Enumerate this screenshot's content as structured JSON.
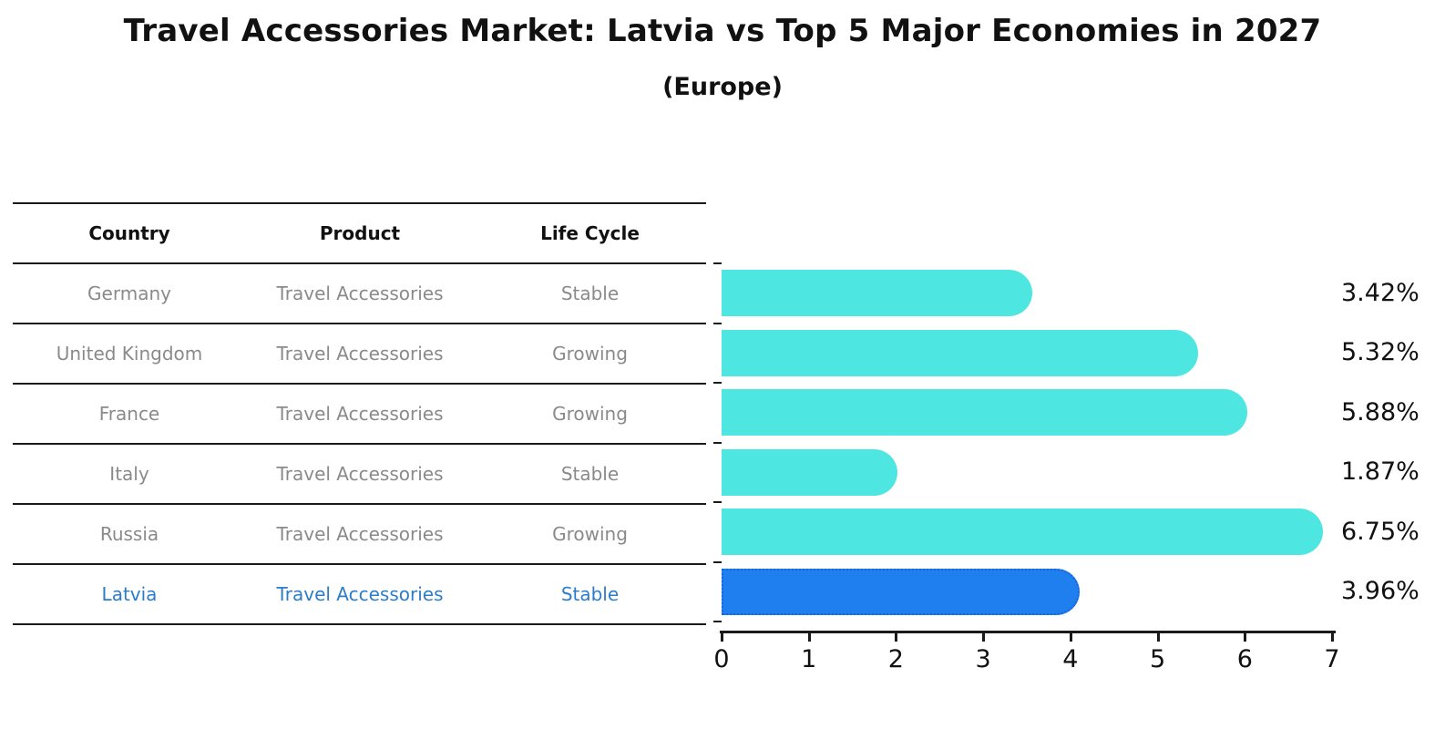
{
  "header": {
    "title": "Travel Accessories Market: Latvia vs Top 5 Major Economies in 2027",
    "subtitle": "(Europe)"
  },
  "table": {
    "headers": [
      "Country",
      "Product",
      "Life Cycle"
    ],
    "rows": [
      {
        "country": "Germany",
        "product": "Travel Accessories",
        "life_cycle": "Stable"
      },
      {
        "country": "United Kingdom",
        "product": "Travel Accessories",
        "life_cycle": "Growing"
      },
      {
        "country": "France",
        "product": "Travel Accessories",
        "life_cycle": "Growing"
      },
      {
        "country": "Italy",
        "product": "Travel Accessories",
        "life_cycle": "Stable"
      },
      {
        "country": "Russia",
        "product": "Travel Accessories",
        "life_cycle": "Growing"
      },
      {
        "country": "Latvia",
        "product": "Travel Accessories",
        "life_cycle": "Stable"
      }
    ],
    "highlight_row_index": 5,
    "highlight_text_color": "#2b7dc9",
    "body_text_color": "#8a8a8a"
  },
  "chart_data": {
    "type": "bar",
    "orientation": "horizontal",
    "title": "Travel Accessories Market: Latvia vs Top 5 Major Economies in 2027",
    "subtitle": "(Europe)",
    "categories": [
      "Germany",
      "United Kingdom",
      "France",
      "Italy",
      "Russia",
      "Latvia"
    ],
    "values": [
      3.42,
      5.32,
      5.88,
      1.87,
      6.75,
      3.96
    ],
    "labels": [
      "3.42%",
      "5.32%",
      "5.88%",
      "1.87%",
      "6.75%",
      "3.96%"
    ],
    "xlabel": "",
    "ylabel": "",
    "xlim": [
      0,
      7
    ],
    "xticks": [
      0,
      1,
      2,
      3,
      4,
      5,
      6,
      7
    ],
    "grid": false,
    "legend": "none",
    "bar_color": "#4de6e1",
    "highlight_index": 5,
    "highlight_color": "#1f7fef",
    "highlight_border_color": "#1566dd"
  }
}
